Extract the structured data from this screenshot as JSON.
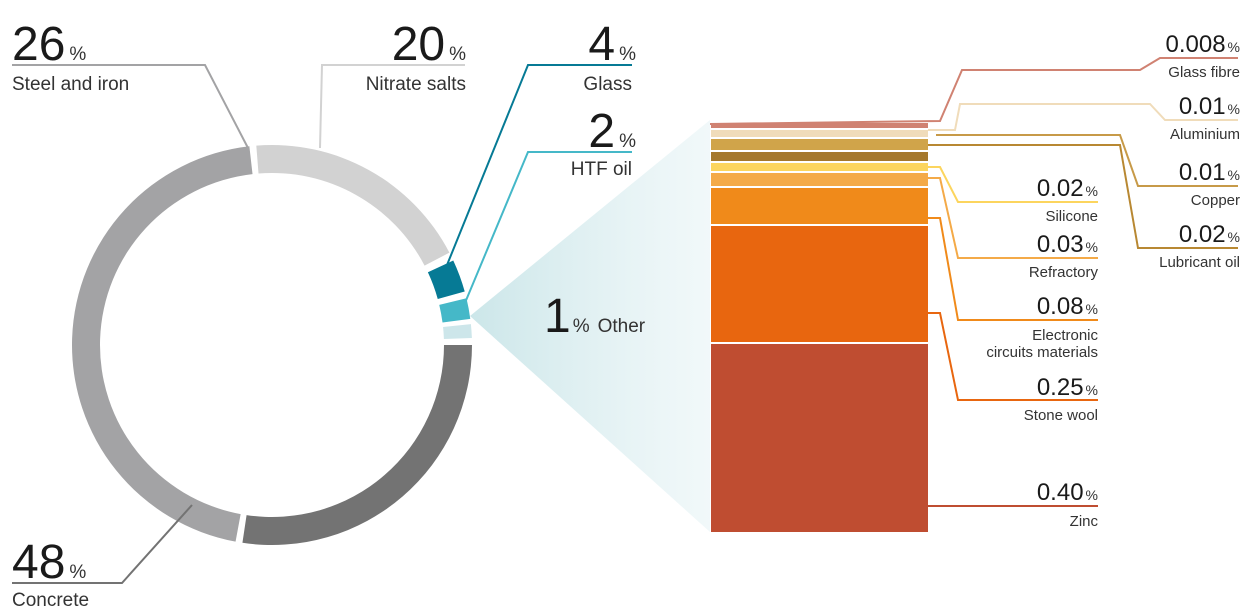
{
  "chart_data": [
    {
      "type": "pie",
      "variant": "donut",
      "slices": [
        {
          "key": "concrete",
          "value": "48",
          "unit": "%",
          "label": "Concrete",
          "color": "#737373"
        },
        {
          "key": "steel",
          "value": "26",
          "unit": "%",
          "label": "Steel and iron",
          "color": "#a3a3a5"
        },
        {
          "key": "nitrate",
          "value": "20",
          "unit": "%",
          "label": "Nitrate salts",
          "color": "#d2d2d2"
        },
        {
          "key": "glass",
          "value": "4",
          "unit": "%",
          "label": "Glass",
          "color": "#067a95"
        },
        {
          "key": "htf",
          "value": "2",
          "unit": "%",
          "label": "HTF oil",
          "color": "#45b8c8"
        },
        {
          "key": "other",
          "value": "1",
          "unit": "%",
          "label": "Other",
          "color": "#cde6ea"
        }
      ]
    },
    {
      "type": "bar",
      "variant": "stacked breakdown of Other",
      "segments": [
        {
          "key": "zinc",
          "value": "0.40",
          "unit": "%",
          "label": "Zinc",
          "color": "#bf4d31"
        },
        {
          "key": "stonewool",
          "value": "0.25",
          "unit": "%",
          "label": "Stone wool",
          "color": "#e8660f"
        },
        {
          "key": "electronic",
          "value": "0.08",
          "unit": "%",
          "label_line1": "Electronic",
          "label_line2": "circuits materials",
          "color": "#f08a1a"
        },
        {
          "key": "refractory",
          "value": "0.03",
          "unit": "%",
          "label": "Refractory",
          "color": "#f4aa48"
        },
        {
          "key": "silicone",
          "value": "0.02",
          "unit": "%",
          "label": "Silicone",
          "color": "#fcd55e"
        },
        {
          "key": "lubricant",
          "value": "0.02",
          "unit": "%",
          "label": "Lubricant oil",
          "color": "#a5782c"
        },
        {
          "key": "copper",
          "value": "0.01",
          "unit": "%",
          "label": "Copper",
          "color": "#d0a44a"
        },
        {
          "key": "aluminium",
          "value": "0.01",
          "unit": "%",
          "label": "Aluminium",
          "color": "#f0dcba"
        },
        {
          "key": "glassfibre",
          "value": "0.008",
          "unit": "%",
          "label": "Glass fibre",
          "color": "#d08272"
        }
      ]
    }
  ],
  "other_callout": {
    "value": "1",
    "unit": "%",
    "label": "Other"
  }
}
